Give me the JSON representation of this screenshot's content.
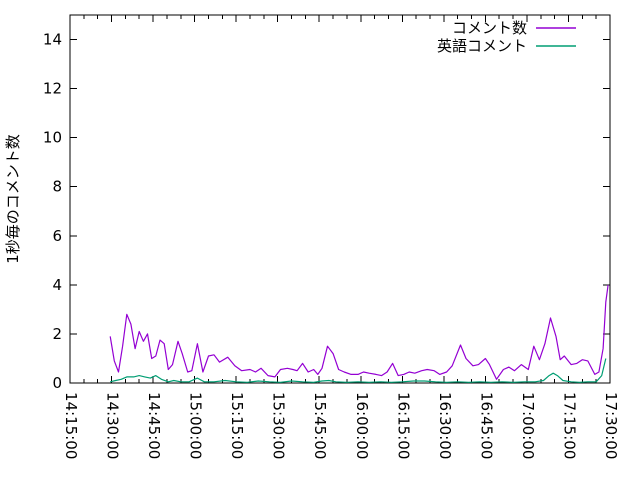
{
  "chart_data": {
    "type": "line",
    "title": "",
    "ylabel": "1秒毎のコメント数",
    "xlabel": "",
    "x_axis": {
      "start_label": "14:15:00",
      "end_label": "17:30:00",
      "domain_minutes": [
        0,
        195
      ],
      "major_tick_minutes": 15,
      "minor_tick_minutes": 5,
      "tick_labels": [
        "14:15:00",
        "14:30:00",
        "14:45:00",
        "15:00:00",
        "15:15:00",
        "15:30:00",
        "15:45:00",
        "16:00:00",
        "16:15:00",
        "16:30:00",
        "16:45:00",
        "17:00:00",
        "17:15:00",
        "17:30:00"
      ],
      "labels_rotated_deg": 90
    },
    "y_axis": {
      "min": 0,
      "max": 15,
      "tick_values": [
        0,
        2,
        4,
        6,
        8,
        10,
        12,
        14
      ],
      "tick_labels": [
        "0",
        "2",
        "4",
        "6",
        "8",
        "10",
        "12",
        "14"
      ]
    },
    "grid": "off",
    "legend": {
      "position": "top-right",
      "entries": [
        {
          "label": "コメント数",
          "color": "#9400d3"
        },
        {
          "label": "英語コメント",
          "color": "#009e73"
        }
      ]
    },
    "colors": {
      "axis": "#000000",
      "background": "#ffffff",
      "series1": "#9400d3",
      "series2": "#009e73"
    },
    "series": [
      {
        "name": "コメント数",
        "color": "#9400d3",
        "x_unit": "minutes_since_14:15:00",
        "points": [
          [
            14.5,
            1.9
          ],
          [
            16,
            0.9
          ],
          [
            17.5,
            0.45
          ],
          [
            19,
            1.5
          ],
          [
            20.5,
            2.8
          ],
          [
            22,
            2.4
          ],
          [
            23.5,
            1.4
          ],
          [
            25,
            2.1
          ],
          [
            26.5,
            1.7
          ],
          [
            28,
            2.0
          ],
          [
            29.5,
            1.0
          ],
          [
            31,
            1.1
          ],
          [
            32.5,
            1.75
          ],
          [
            34,
            1.6
          ],
          [
            35.5,
            0.55
          ],
          [
            37,
            0.75
          ],
          [
            39,
            1.7
          ],
          [
            40.5,
            1.2
          ],
          [
            42.5,
            0.45
          ],
          [
            44,
            0.5
          ],
          [
            46,
            1.6
          ],
          [
            48,
            0.45
          ],
          [
            50,
            1.1
          ],
          [
            52,
            1.15
          ],
          [
            54,
            0.85
          ],
          [
            57,
            1.05
          ],
          [
            59.5,
            0.7
          ],
          [
            62,
            0.5
          ],
          [
            65,
            0.55
          ],
          [
            67,
            0.45
          ],
          [
            69,
            0.6
          ],
          [
            71.5,
            0.3
          ],
          [
            74,
            0.25
          ],
          [
            76,
            0.55
          ],
          [
            78.5,
            0.6
          ],
          [
            80.5,
            0.55
          ],
          [
            82,
            0.5
          ],
          [
            84,
            0.8
          ],
          [
            86,
            0.45
          ],
          [
            88,
            0.55
          ],
          [
            89.5,
            0.35
          ],
          [
            91,
            0.6
          ],
          [
            93,
            1.5
          ],
          [
            95,
            1.2
          ],
          [
            97,
            0.55
          ],
          [
            99,
            0.45
          ],
          [
            101.5,
            0.35
          ],
          [
            104,
            0.35
          ],
          [
            106,
            0.45
          ],
          [
            108,
            0.4
          ],
          [
            110.5,
            0.35
          ],
          [
            112.5,
            0.3
          ],
          [
            114.5,
            0.45
          ],
          [
            116.5,
            0.8
          ],
          [
            118.5,
            0.3
          ],
          [
            120.5,
            0.35
          ],
          [
            122.5,
            0.45
          ],
          [
            124.5,
            0.4
          ],
          [
            127,
            0.5
          ],
          [
            129,
            0.55
          ],
          [
            131.5,
            0.5
          ],
          [
            133.5,
            0.35
          ],
          [
            136,
            0.45
          ],
          [
            138,
            0.7
          ],
          [
            141,
            1.55
          ],
          [
            143,
            1.0
          ],
          [
            145.5,
            0.7
          ],
          [
            147.5,
            0.75
          ],
          [
            150,
            1.0
          ],
          [
            151.5,
            0.75
          ],
          [
            154,
            0.15
          ],
          [
            156.5,
            0.55
          ],
          [
            158.5,
            0.65
          ],
          [
            160.5,
            0.5
          ],
          [
            163,
            0.75
          ],
          [
            165.5,
            0.55
          ],
          [
            167.5,
            1.5
          ],
          [
            169.5,
            0.95
          ],
          [
            171.5,
            1.6
          ],
          [
            173.5,
            2.65
          ],
          [
            175.5,
            1.9
          ],
          [
            177,
            0.95
          ],
          [
            178.5,
            1.1
          ],
          [
            181,
            0.75
          ],
          [
            183,
            0.8
          ],
          [
            185,
            0.95
          ],
          [
            187,
            0.9
          ],
          [
            189.5,
            0.35
          ],
          [
            191,
            0.45
          ],
          [
            192.5,
            1.4
          ],
          [
            193.5,
            3.3
          ],
          [
            194.3,
            4.0
          ]
        ]
      },
      {
        "name": "英語コメント",
        "color": "#009e73",
        "x_unit": "minutes_since_14:15:00",
        "points": [
          [
            14.5,
            0.05
          ],
          [
            16.5,
            0.1
          ],
          [
            18.5,
            0.15
          ],
          [
            20.5,
            0.25
          ],
          [
            23,
            0.25
          ],
          [
            25,
            0.3
          ],
          [
            27,
            0.25
          ],
          [
            29,
            0.2
          ],
          [
            31,
            0.3
          ],
          [
            33,
            0.15
          ],
          [
            35.5,
            0.05
          ],
          [
            37.5,
            0.1
          ],
          [
            40,
            0.05
          ],
          [
            43,
            0.05
          ],
          [
            46,
            0.2
          ],
          [
            48.5,
            0.05
          ],
          [
            52,
            0.05
          ],
          [
            56,
            0.1
          ],
          [
            60,
            0.05
          ],
          [
            64,
            0.03
          ],
          [
            68,
            0.08
          ],
          [
            72,
            0.05
          ],
          [
            76,
            0.03
          ],
          [
            80,
            0.08
          ],
          [
            84,
            0.05
          ],
          [
            88,
            0.03
          ],
          [
            91,
            0.08
          ],
          [
            93.5,
            0.1
          ],
          [
            96,
            0.05
          ],
          [
            100,
            0.03
          ],
          [
            104,
            0.05
          ],
          [
            108,
            0.03
          ],
          [
            112,
            0.05
          ],
          [
            116,
            0.03
          ],
          [
            120,
            0.05
          ],
          [
            124,
            0.08
          ],
          [
            128,
            0.08
          ],
          [
            132,
            0.05
          ],
          [
            136,
            0.03
          ],
          [
            140,
            0.05
          ],
          [
            144,
            0.03
          ],
          [
            148,
            0.05
          ],
          [
            152,
            0.03
          ],
          [
            156,
            0.05
          ],
          [
            160,
            0.03
          ],
          [
            164,
            0.05
          ],
          [
            168,
            0.05
          ],
          [
            171,
            0.1
          ],
          [
            173,
            0.3
          ],
          [
            174.5,
            0.4
          ],
          [
            176,
            0.3
          ],
          [
            178,
            0.1
          ],
          [
            181,
            0.05
          ],
          [
            184,
            0.03
          ],
          [
            187,
            0.05
          ],
          [
            190,
            0.05
          ],
          [
            192,
            0.3
          ],
          [
            193.5,
            1.0
          ]
        ]
      }
    ]
  }
}
